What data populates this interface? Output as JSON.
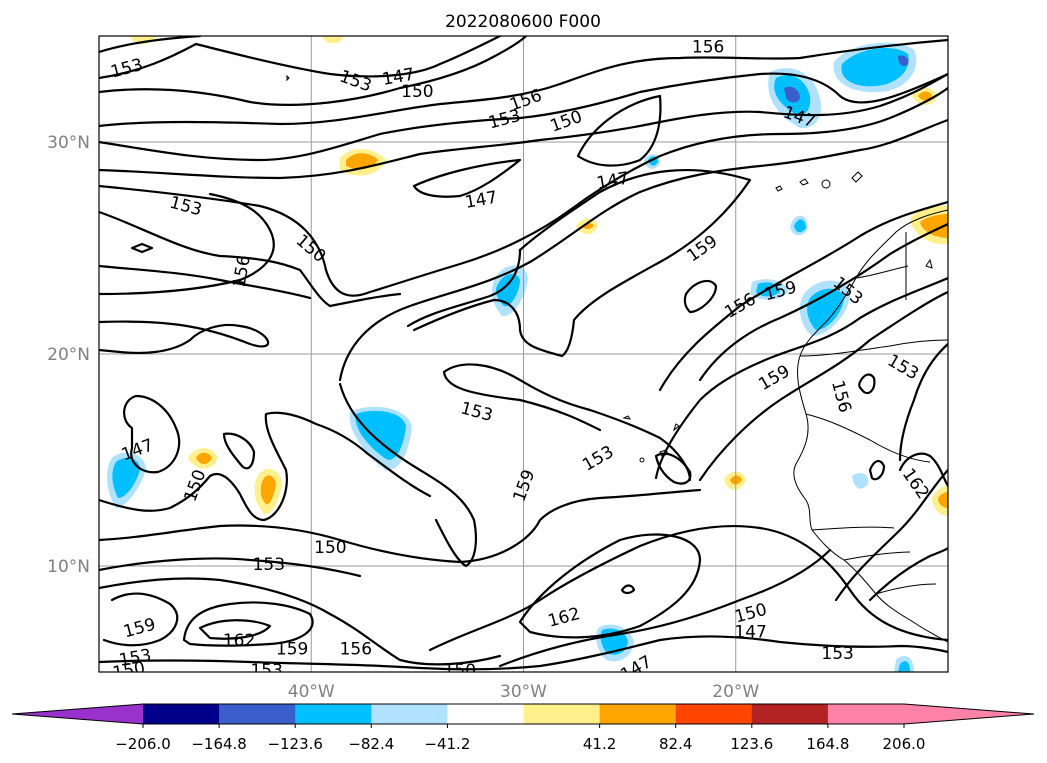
{
  "chart_data": {
    "type": "contour",
    "title": "2022080600 F000",
    "x_ticks": [
      {
        "lon": -40,
        "label": "40°W"
      },
      {
        "lon": -30,
        "label": "30°W"
      },
      {
        "lon": -20,
        "label": "20°W"
      }
    ],
    "y_ticks": [
      {
        "lat": 30,
        "label": "30°N"
      },
      {
        "lat": 20,
        "label": "20°N"
      },
      {
        "lat": 10,
        "label": "10°N"
      }
    ],
    "xlim": [
      -50,
      -10
    ],
    "ylim": [
      5,
      35
    ],
    "grid": true,
    "contour_line_levels": [
      147,
      150,
      153,
      156,
      159,
      162
    ],
    "contour_line_labels": [
      {
        "text": "153",
        "lon": -48.7,
        "lat": 33.5,
        "angle": -15
      },
      {
        "text": "153",
        "lon": -37.9,
        "lat": 32.9,
        "angle": 20
      },
      {
        "text": "147",
        "lon": -35.9,
        "lat": 33.1,
        "angle": -10
      },
      {
        "text": "150",
        "lon": -35.0,
        "lat": 32.4,
        "angle": 0
      },
      {
        "text": "156",
        "lon": -21.3,
        "lat": 34.5,
        "angle": 0
      },
      {
        "text": "156",
        "lon": -29.9,
        "lat": 32.0,
        "angle": -20
      },
      {
        "text": "153",
        "lon": -30.9,
        "lat": 31.1,
        "angle": -15
      },
      {
        "text": "150",
        "lon": -28.0,
        "lat": 31.0,
        "angle": -20
      },
      {
        "text": "147",
        "lon": -25.8,
        "lat": 28.2,
        "angle": -10
      },
      {
        "text": "147",
        "lon": -32.0,
        "lat": 27.3,
        "angle": -10
      },
      {
        "text": "153",
        "lon": -45.9,
        "lat": 27.0,
        "angle": 15
      },
      {
        "text": "150",
        "lon": -40.0,
        "lat": 25.0,
        "angle": 40
      },
      {
        "text": "156",
        "lon": -43.3,
        "lat": 23.9,
        "angle": -80
      },
      {
        "text": "159",
        "lon": -21.6,
        "lat": 25.0,
        "angle": -35
      },
      {
        "text": "159",
        "lon": -17.9,
        "lat": 23.0,
        "angle": -15
      },
      {
        "text": "156",
        "lon": -19.8,
        "lat": 22.3,
        "angle": -30
      },
      {
        "text": "153",
        "lon": -14.7,
        "lat": 23.0,
        "angle": 40
      },
      {
        "text": "153",
        "lon": -12.1,
        "lat": 19.4,
        "angle": 30
      },
      {
        "text": "159",
        "lon": -18.2,
        "lat": 18.9,
        "angle": -30
      },
      {
        "text": "156",
        "lon": -15.0,
        "lat": 18.0,
        "angle": 75
      },
      {
        "text": "153",
        "lon": -32.2,
        "lat": 17.3,
        "angle": 15
      },
      {
        "text": "153",
        "lon": -26.5,
        "lat": 15.1,
        "angle": -30
      },
      {
        "text": "147",
        "lon": -48.2,
        "lat": 15.5,
        "angle": -20
      },
      {
        "text": "150",
        "lon": -45.5,
        "lat": 13.8,
        "angle": -70
      },
      {
        "text": "159",
        "lon": -30.0,
        "lat": 13.8,
        "angle": -70
      },
      {
        "text": "162",
        "lon": -11.5,
        "lat": 13.9,
        "angle": 55
      },
      {
        "text": "150",
        "lon": -39.1,
        "lat": 10.9,
        "angle": 0
      },
      {
        "text": "153",
        "lon": -42.0,
        "lat": 10.1,
        "angle": 0
      },
      {
        "text": "159",
        "lon": -48.1,
        "lat": 7.1,
        "angle": -15
      },
      {
        "text": "162",
        "lon": -43.4,
        "lat": 6.5,
        "angle": 0
      },
      {
        "text": "159",
        "lon": -40.9,
        "lat": 6.1,
        "angle": 0
      },
      {
        "text": "156",
        "lon": -37.9,
        "lat": 6.1,
        "angle": 0
      },
      {
        "text": "162",
        "lon": -28.1,
        "lat": 7.6,
        "angle": -15
      },
      {
        "text": "150",
        "lon": -19.3,
        "lat": 7.8,
        "angle": -15
      },
      {
        "text": "147",
        "lon": -19.3,
        "lat": 6.9,
        "angle": 0
      },
      {
        "text": "153",
        "lon": -15.2,
        "lat": 5.9,
        "angle": 0
      },
      {
        "text": "153",
        "lon": -48.3,
        "lat": 5.7,
        "angle": -10
      },
      {
        "text": "150",
        "lon": -48.6,
        "lat": 5.1,
        "angle": -10
      },
      {
        "text": "153",
        "lon": -42.1,
        "lat": 5.1,
        "angle": 0
      },
      {
        "text": "150",
        "lon": -33.0,
        "lat": 5.1,
        "angle": 0
      },
      {
        "text": "147",
        "lon": -24.7,
        "lat": 5.2,
        "angle": -30
      },
      {
        "text": "147",
        "lon": -17.0,
        "lat": 31.2,
        "angle": 20
      }
    ],
    "colorbar": {
      "tick_labels": [
        "−206.0",
        "−164.8",
        "−123.6",
        "−82.4",
        "−41.2",
        "41.2",
        "82.4",
        "123.6",
        "164.8",
        "206.0"
      ],
      "boundaries": [
        -206.0,
        -164.8,
        -123.6,
        -82.4,
        -41.2,
        0,
        41.2,
        82.4,
        123.6,
        164.8,
        206.0
      ],
      "colors": [
        "#9932cc",
        "#00008b",
        "#3a5fcd",
        "#00bfff",
        "#b0e2ff",
        "#ffffff",
        "#fff08c",
        "#ffa500",
        "#ff4500",
        "#b22222",
        "#ff82ab"
      ],
      "extend": "both"
    }
  }
}
